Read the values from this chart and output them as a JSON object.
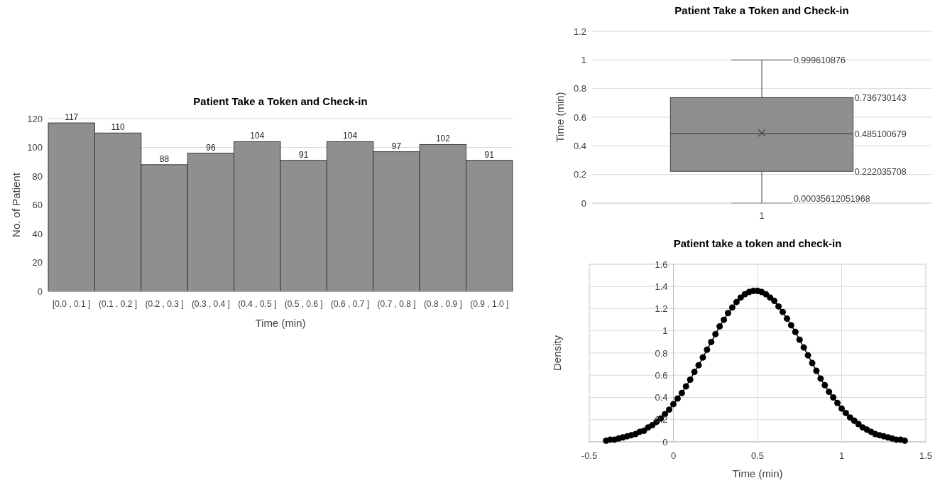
{
  "chart_data": [
    {
      "type": "bar",
      "title": "Patient Take a Token and Check-in",
      "xlabel": "Time (min)",
      "ylabel": "No. of Patient",
      "categories": [
        "[0.0 , 0.1 ]",
        "(0.1 , 0.2 ]",
        "(0.2 , 0.3 ]",
        "(0.3 , 0.4 ]",
        "(0.4 , 0.5 ]",
        "(0.5 , 0.6 ]",
        "(0.6 , 0.7 ]",
        "(0.7 , 0.8 ]",
        "(0.8 , 0.9 ]",
        "(0.9 , 1.0 ]"
      ],
      "values": [
        117,
        110,
        88,
        96,
        104,
        91,
        104,
        97,
        102,
        91
      ],
      "color": "#8f8f8f",
      "ylim": [
        0,
        120
      ],
      "yticks": [
        0,
        20,
        40,
        60,
        80,
        100,
        120
      ],
      "grid": "y",
      "data_labels": true
    },
    {
      "type": "box",
      "title": "Patient Take a Token and Check-in",
      "ylabel": "Time (min)",
      "categories": [
        "1"
      ],
      "boxes": [
        {
          "low": 0.00035612051968,
          "q1": 0.222035708,
          "median": 0.485100679,
          "q3": 0.736730143,
          "high": 0.999610876,
          "mean": 0.49
        }
      ],
      "color": "#8f8f8f",
      "ylim": [
        0,
        1.2
      ],
      "yticks": [
        0,
        0.2,
        0.4,
        0.6,
        0.8,
        1,
        1.2
      ],
      "grid": "y",
      "annotations": [
        "0.999610876",
        "0.736730143",
        "0.485100679",
        "0.222035708",
        "0.00035612051968"
      ]
    },
    {
      "type": "line",
      "title": "Patient take a token and check-in",
      "xlabel": "Time (min)",
      "ylabel": "Density",
      "x": [
        -0.4,
        -0.375,
        -0.35,
        -0.325,
        -0.3,
        -0.275,
        -0.25,
        -0.225,
        -0.2,
        -0.175,
        -0.15,
        -0.125,
        -0.1,
        -0.075,
        -0.05,
        -0.025,
        0,
        0.025,
        0.05,
        0.075,
        0.1,
        0.125,
        0.15,
        0.175,
        0.2,
        0.225,
        0.25,
        0.275,
        0.3,
        0.325,
        0.35,
        0.375,
        0.4,
        0.425,
        0.45,
        0.475,
        0.5,
        0.525,
        0.55,
        0.575,
        0.6,
        0.625,
        0.65,
        0.675,
        0.7,
        0.725,
        0.75,
        0.775,
        0.8,
        0.825,
        0.85,
        0.875,
        0.9,
        0.925,
        0.95,
        0.975,
        1,
        1.025,
        1.05,
        1.075,
        1.1,
        1.125,
        1.15,
        1.175,
        1.2,
        1.225,
        1.25,
        1.275,
        1.3,
        1.325,
        1.35,
        1.375
      ],
      "values": [
        0.01,
        0.02,
        0.02,
        0.03,
        0.04,
        0.05,
        0.06,
        0.07,
        0.09,
        0.1,
        0.13,
        0.15,
        0.18,
        0.21,
        0.25,
        0.29,
        0.34,
        0.39,
        0.44,
        0.5,
        0.56,
        0.63,
        0.69,
        0.76,
        0.83,
        0.9,
        0.97,
        1.04,
        1.1,
        1.16,
        1.21,
        1.26,
        1.3,
        1.33,
        1.35,
        1.36,
        1.36,
        1.35,
        1.33,
        1.3,
        1.27,
        1.22,
        1.17,
        1.11,
        1.05,
        0.99,
        0.92,
        0.85,
        0.78,
        0.71,
        0.64,
        0.57,
        0.51,
        0.45,
        0.4,
        0.35,
        0.3,
        0.26,
        0.22,
        0.19,
        0.16,
        0.13,
        0.11,
        0.09,
        0.07,
        0.06,
        0.05,
        0.04,
        0.03,
        0.02,
        0.02,
        0.01
      ],
      "color": "#000000",
      "marker": "circle",
      "xlim": [
        -0.5,
        1.5
      ],
      "xticks": [
        -0.5,
        0,
        0.5,
        1,
        1.5
      ],
      "ylim": [
        0,
        1.6
      ],
      "yticks": [
        0,
        0.2,
        0.4,
        0.6,
        0.8,
        1,
        1.2,
        1.4,
        1.6
      ],
      "grid": true
    }
  ]
}
